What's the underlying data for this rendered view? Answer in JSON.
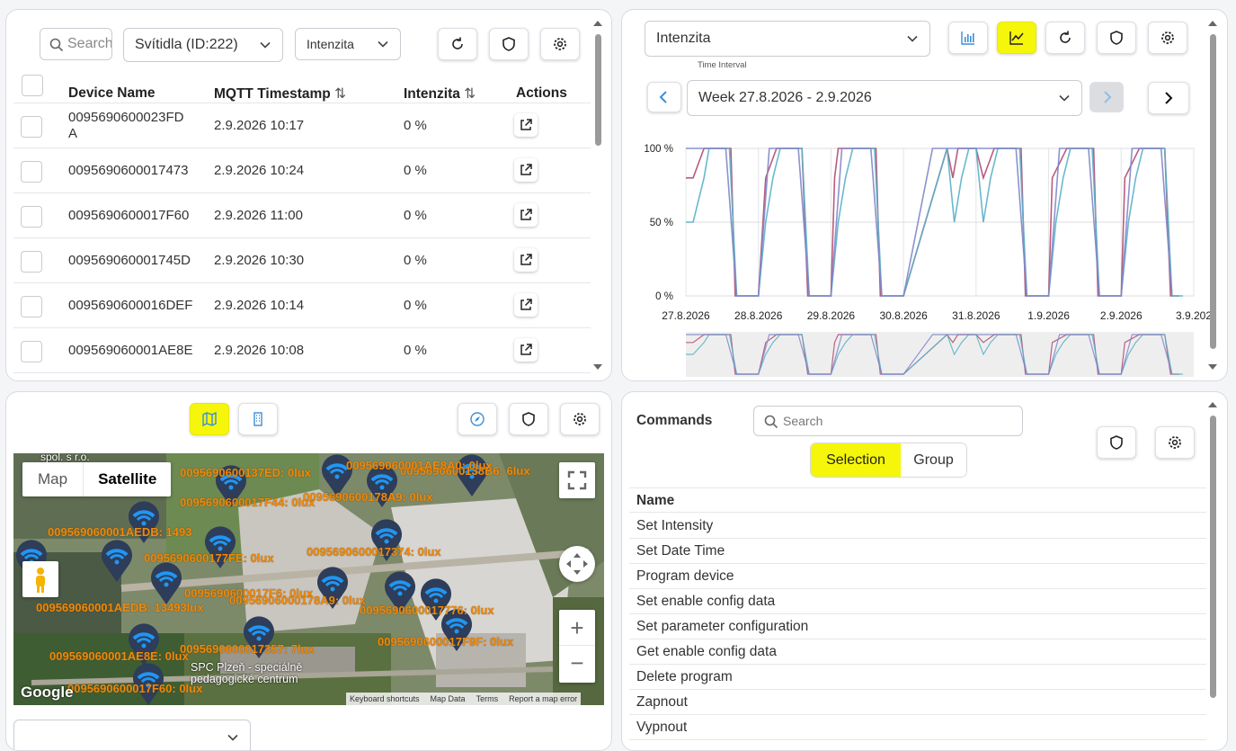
{
  "devices_panel": {
    "search_placeholder": "Search",
    "device_type_select": "Svítidla (ID:222)",
    "attribute_select": "Intenzita",
    "columns": {
      "device_name": "Device Name",
      "timestamp": "MQTT Timestamp",
      "intensity": "Intenzita",
      "actions": "Actions"
    },
    "rows": [
      {
        "name": "0095690600023FDA",
        "name_line1": "0095690600023FD",
        "name_line2": "A",
        "timestamp": "2.9.2026 10:17",
        "intensity": "0 %"
      },
      {
        "name": "0095690600017473",
        "timestamp": "2.9.2026 10:24",
        "intensity": "0 %"
      },
      {
        "name": "0095690600017F60",
        "timestamp": "2.9.2026 11:00",
        "intensity": "0 %"
      },
      {
        "name": "009569060001745D",
        "timestamp": "2.9.2026 10:30",
        "intensity": "0 %"
      },
      {
        "name": "0095690600016DEF",
        "timestamp": "2.9.2026 10:14",
        "intensity": "0 %"
      },
      {
        "name": "009569060001AE8E",
        "timestamp": "2.9.2026 10:08",
        "intensity": "0 %"
      }
    ]
  },
  "chart_panel": {
    "attribute_select": "Intenzita",
    "time_interval_label": "Time Interval",
    "week_select": "Week 27.8.2026 - 2.9.2026",
    "chart_data": {
      "type": "line",
      "title": "",
      "ylim": [
        0,
        100
      ],
      "y_ticks": [
        "100 %",
        "50 %",
        "0 %"
      ],
      "x_ticks": [
        "27.8.2026",
        "28.8.2026",
        "29.8.2026",
        "30.8.2026",
        "31.8.2026",
        "1.9.2026",
        "2.9.2026",
        "3.9.202"
      ],
      "series": [
        {
          "color": "#b04a6e",
          "x": [
            0,
            0.1,
            0.25,
            0.3,
            0.62,
            0.68,
            0.8,
            1.0,
            1.1,
            1.25,
            1.28,
            1.6,
            1.68,
            1.8,
            2.0,
            2.05,
            2.1,
            2.2,
            2.28,
            2.62,
            2.68,
            2.85,
            3.0,
            3.6,
            3.68,
            3.75,
            3.85,
            4.0,
            4.1,
            4.25,
            4.28,
            4.62,
            4.68,
            4.8,
            5.0,
            5.05,
            5.25,
            5.28,
            5.62,
            5.68,
            5.8,
            6.0,
            6.05,
            6.25,
            6.28,
            6.6,
            6.68,
            6.8
          ],
          "y": [
            80,
            80,
            100,
            100,
            100,
            0,
            0,
            0,
            80,
            100,
            100,
            100,
            0,
            0,
            0,
            80,
            100,
            100,
            100,
            100,
            0,
            0,
            0,
            100,
            80,
            100,
            100,
            100,
            80,
            100,
            100,
            100,
            0,
            0,
            0,
            80,
            100,
            100,
            100,
            0,
            0,
            0,
            80,
            100,
            100,
            100,
            0,
            0
          ]
        },
        {
          "color": "#5ab0c8",
          "x": [
            0,
            0.1,
            0.25,
            0.32,
            0.6,
            0.7,
            0.85,
            1.0,
            1.1,
            1.2,
            1.3,
            1.6,
            1.7,
            1.85,
            2.0,
            2.1,
            2.2,
            2.3,
            2.6,
            2.7,
            2.85,
            3.0,
            3.6,
            3.7,
            3.8,
            3.9,
            4.0,
            4.1,
            4.2,
            4.3,
            4.6,
            4.7,
            4.85,
            5.0,
            5.1,
            5.2,
            5.3,
            5.6,
            5.7,
            5.85,
            6.0,
            6.1,
            6.2,
            6.3,
            6.6,
            6.7,
            6.85
          ],
          "y": [
            50,
            50,
            80,
            100,
            100,
            0,
            0,
            0,
            50,
            80,
            100,
            100,
            0,
            0,
            0,
            50,
            80,
            100,
            100,
            0,
            0,
            0,
            100,
            50,
            80,
            100,
            100,
            50,
            80,
            100,
            100,
            0,
            0,
            0,
            50,
            80,
            100,
            100,
            0,
            0,
            0,
            50,
            80,
            100,
            100,
            0,
            0
          ]
        },
        {
          "color": "#7f86c8",
          "x": [
            0,
            0.15,
            0.3,
            0.55,
            0.7,
            1.0,
            1.15,
            1.3,
            1.55,
            1.7,
            2.0,
            2.15,
            2.3,
            2.55,
            2.7,
            3.0,
            3.4,
            3.7,
            4.0,
            4.15,
            4.3,
            4.55,
            4.7,
            5.0,
            5.15,
            5.3,
            5.55,
            5.7,
            6.0,
            6.15,
            6.3,
            6.55,
            6.7
          ],
          "y": [
            100,
            100,
            100,
            100,
            0,
            0,
            100,
            100,
            100,
            0,
            0,
            100,
            100,
            100,
            0,
            0,
            100,
            100,
            100,
            100,
            100,
            100,
            0,
            0,
            100,
            100,
            100,
            0,
            0,
            100,
            100,
            100,
            0
          ]
        }
      ]
    }
  },
  "map_panel": {
    "map_type_map": "Map",
    "map_type_satellite": "Satellite",
    "google_label": "Google",
    "footer_links": [
      "Keyboard shortcuts",
      "Map Data",
      "Terms",
      "Report a map error"
    ],
    "place_label_1": "SPC Plzeň - speciálně",
    "place_label_2": "pedagogické centrum",
    "place_label_top": "spol. s r.o.",
    "device_labels": [
      "0095690600137ED: 0lux",
      "0095690600138B6: 6lux",
      "009569060001AE8A0: 0lux",
      "0095690600178A9: 0lux",
      "0095690600017F44: 0lux",
      "009569060001AEDB: 1493",
      "0095690600177FE: 0lux",
      "0095690600017374: 0lux",
      "0095690600017F6: 0lux",
      "009569060001AEDB: 13493lux",
      "0095690600017357: 7lux",
      "0095690600017F9F: 0lux",
      "0095690600017776: 0lux",
      "00956906000178A9: 0lux",
      "009569060001AE8E: 0lux",
      "0095690600017F60: 0lux"
    ],
    "bottom_select": ""
  },
  "commands_panel": {
    "title": "Commands",
    "search_placeholder": "Search",
    "toggle_selection": "Selection",
    "toggle_group": "Group",
    "column_name": "Name",
    "commands": [
      "Set Intensity",
      "Set Date Time",
      "Program device",
      "Set enable config data",
      "Set parameter configuration",
      "Get enable config data",
      "Delete program",
      "Zapnout",
      "Vypnout"
    ]
  },
  "colors": {
    "accent_yellow": "#f6f60b",
    "link_blue": "#3b8fd8",
    "label_orange": "#f08a0a"
  }
}
